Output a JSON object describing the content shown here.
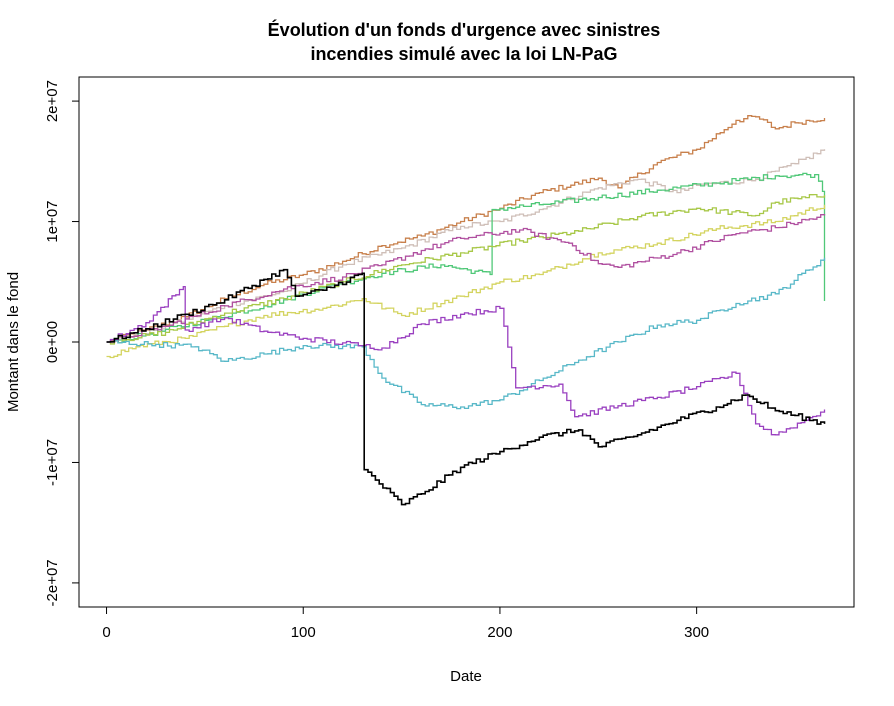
{
  "chart_data": {
    "type": "line",
    "title_lines": [
      "Évolution d'un fonds d'urgence avec sinistres",
      "incendies simulé avec la loi LN-PaG"
    ],
    "xlabel": "Date",
    "ylabel": "Montant dans le fond",
    "xlim": [
      -14,
      380
    ],
    "ylim": [
      -22000000,
      22000000
    ],
    "x_ticks": [
      0,
      100,
      200,
      300
    ],
    "x_tick_labels": [
      "0",
      "100",
      "200",
      "300"
    ],
    "y_ticks": [
      -20000000,
      -10000000,
      0,
      10000000,
      20000000
    ],
    "y_tick_labels": [
      "-2e+07",
      "-1e+07",
      "0e+00",
      "1e+07",
      "2e+07"
    ],
    "step": true,
    "series": [
      {
        "color": "#c8804c",
        "points": [
          [
            0,
            0
          ],
          [
            20,
            1000000
          ],
          [
            40,
            2100000
          ],
          [
            60,
            3600000
          ],
          [
            80,
            4800000
          ],
          [
            100,
            5600000
          ],
          [
            120,
            6700000
          ],
          [
            140,
            8000000
          ],
          [
            160,
            8800000
          ],
          [
            180,
            10000000
          ],
          [
            200,
            11100000
          ],
          [
            220,
            12400000
          ],
          [
            250,
            13600000
          ],
          [
            260,
            12800000
          ],
          [
            280,
            14900000
          ],
          [
            300,
            16000000
          ],
          [
            320,
            18400000
          ],
          [
            330,
            18700000
          ],
          [
            340,
            17700000
          ],
          [
            350,
            18200000
          ],
          [
            365,
            18600000
          ]
        ]
      },
      {
        "color": "#cfbfb8",
        "points": [
          [
            0,
            0
          ],
          [
            30,
            1300000
          ],
          [
            60,
            3000000
          ],
          [
            90,
            4200000
          ],
          [
            120,
            6400000
          ],
          [
            150,
            7800000
          ],
          [
            180,
            9600000
          ],
          [
            200,
            10000000
          ],
          [
            220,
            11000000
          ],
          [
            250,
            12800000
          ],
          [
            270,
            13500000
          ],
          [
            290,
            12400000
          ],
          [
            300,
            13000000
          ],
          [
            330,
            13500000
          ],
          [
            350,
            14800000
          ],
          [
            365,
            16000000
          ]
        ]
      },
      {
        "color": "#50c878",
        "points": [
          [
            0,
            0
          ],
          [
            20,
            600000
          ],
          [
            50,
            1800000
          ],
          [
            80,
            3000000
          ],
          [
            110,
            4500000
          ],
          [
            140,
            5700000
          ],
          [
            170,
            6400000
          ],
          [
            195,
            5600000
          ],
          [
            196,
            11000000
          ],
          [
            220,
            11400000
          ],
          [
            250,
            12000000
          ],
          [
            280,
            12600000
          ],
          [
            310,
            13200000
          ],
          [
            340,
            13800000
          ],
          [
            360,
            13900000
          ],
          [
            364,
            12500000
          ],
          [
            365,
            3400000
          ]
        ]
      },
      {
        "color": "#a8c848",
        "points": [
          [
            0,
            0
          ],
          [
            30,
            800000
          ],
          [
            60,
            2400000
          ],
          [
            90,
            3600000
          ],
          [
            120,
            5000000
          ],
          [
            150,
            6400000
          ],
          [
            180,
            7400000
          ],
          [
            210,
            8400000
          ],
          [
            240,
            9200000
          ],
          [
            270,
            10400000
          ],
          [
            300,
            11100000
          ],
          [
            330,
            10500000
          ],
          [
            340,
            11600000
          ],
          [
            365,
            12200000
          ]
        ]
      },
      {
        "color": "#d4d460",
        "points": [
          [
            0,
            -1200000
          ],
          [
            15,
            -400000
          ],
          [
            40,
            300000
          ],
          [
            60,
            1300000
          ],
          [
            80,
            2200000
          ],
          [
            110,
            2800000
          ],
          [
            130,
            3600000
          ],
          [
            150,
            2200000
          ],
          [
            180,
            3800000
          ],
          [
            200,
            5000000
          ],
          [
            220,
            5600000
          ],
          [
            250,
            7400000
          ],
          [
            280,
            8200000
          ],
          [
            310,
            9400000
          ],
          [
            340,
            10000000
          ],
          [
            365,
            11400000
          ]
        ]
      },
      {
        "color": "#b050a0",
        "points": [
          [
            0,
            0
          ],
          [
            30,
            1300000
          ],
          [
            60,
            3000000
          ],
          [
            90,
            4400000
          ],
          [
            120,
            5400000
          ],
          [
            140,
            6400000
          ],
          [
            160,
            7600000
          ],
          [
            180,
            8600000
          ],
          [
            210,
            9300000
          ],
          [
            235,
            8200000
          ],
          [
            250,
            6500000
          ],
          [
            260,
            6200000
          ],
          [
            290,
            7400000
          ],
          [
            320,
            9000000
          ],
          [
            340,
            9500000
          ],
          [
            365,
            10500000
          ]
        ]
      },
      {
        "color": "#58b8c8",
        "points": [
          [
            0,
            0
          ],
          [
            25,
            -200000
          ],
          [
            45,
            -400000
          ],
          [
            60,
            -1600000
          ],
          [
            80,
            -1000000
          ],
          [
            100,
            -300000
          ],
          [
            130,
            -400000
          ],
          [
            140,
            -3000000
          ],
          [
            160,
            -5200000
          ],
          [
            180,
            -5400000
          ],
          [
            200,
            -4800000
          ],
          [
            220,
            -3200000
          ],
          [
            240,
            -1500000
          ],
          [
            260,
            0
          ],
          [
            280,
            1400000
          ],
          [
            300,
            1800000
          ],
          [
            320,
            3200000
          ],
          [
            340,
            4000000
          ],
          [
            365,
            7000000
          ]
        ]
      },
      {
        "color": "#9a40c0",
        "points": [
          [
            0,
            0
          ],
          [
            20,
            1600000
          ],
          [
            39,
            4600000
          ],
          [
            40,
            1000000
          ],
          [
            60,
            2000000
          ],
          [
            80,
            900000
          ],
          [
            100,
            300000
          ],
          [
            130,
            -300000
          ],
          [
            140,
            -500000
          ],
          [
            160,
            1500000
          ],
          [
            180,
            2300000
          ],
          [
            200,
            2800000
          ],
          [
            208,
            -3800000
          ],
          [
            230,
            -3500000
          ],
          [
            238,
            -6200000
          ],
          [
            260,
            -5300000
          ],
          [
            280,
            -4600000
          ],
          [
            300,
            -3700000
          ],
          [
            320,
            -2600000
          ],
          [
            330,
            -6800000
          ],
          [
            340,
            -7700000
          ],
          [
            355,
            -6500000
          ],
          [
            365,
            -5600000
          ]
        ]
      },
      {
        "color": "#000000",
        "points": [
          [
            0,
            0
          ],
          [
            20,
            1100000
          ],
          [
            40,
            2300000
          ],
          [
            60,
            3500000
          ],
          [
            80,
            5200000
          ],
          [
            90,
            6000000
          ],
          [
            96,
            3800000
          ],
          [
            110,
            4300000
          ],
          [
            130,
            5700000
          ],
          [
            131,
            -10600000
          ],
          [
            150,
            -13500000
          ],
          [
            160,
            -12600000
          ],
          [
            180,
            -10400000
          ],
          [
            200,
            -9100000
          ],
          [
            220,
            -7900000
          ],
          [
            240,
            -7300000
          ],
          [
            250,
            -8700000
          ],
          [
            270,
            -7700000
          ],
          [
            290,
            -6500000
          ],
          [
            310,
            -5400000
          ],
          [
            325,
            -4400000
          ],
          [
            340,
            -5700000
          ],
          [
            350,
            -6100000
          ],
          [
            365,
            -6800000
          ]
        ]
      }
    ]
  }
}
